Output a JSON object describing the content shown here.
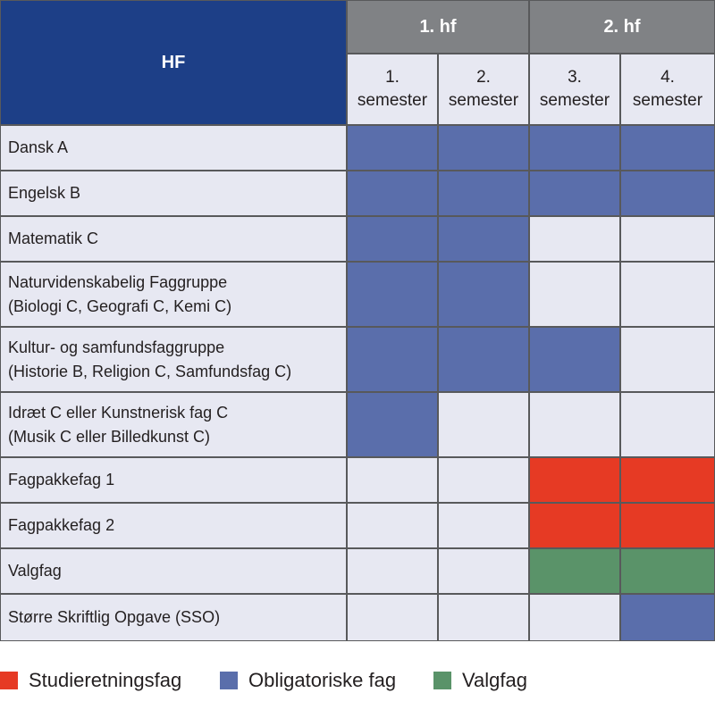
{
  "table": {
    "title": "HF",
    "years": [
      {
        "label": "1. hf"
      },
      {
        "label": "2. hf"
      }
    ],
    "semesters": [
      {
        "line1": "1.",
        "line2": "semester"
      },
      {
        "line1": "2.",
        "line2": "semester"
      },
      {
        "line1": "3.",
        "line2": "semester"
      },
      {
        "line1": "4.",
        "line2": "semester"
      }
    ],
    "rows": [
      {
        "lines": [
          "Dansk A"
        ],
        "cells": [
          "obligatorisk",
          "obligatorisk",
          "obligatorisk",
          "obligatorisk"
        ]
      },
      {
        "lines": [
          "Engelsk B"
        ],
        "cells": [
          "obligatorisk",
          "obligatorisk",
          "obligatorisk",
          "obligatorisk"
        ]
      },
      {
        "lines": [
          "Matematik C"
        ],
        "cells": [
          "obligatorisk",
          "obligatorisk",
          "",
          ""
        ]
      },
      {
        "lines": [
          "Naturvidenskabelig Faggruppe",
          "(Biologi C, Geografi C, Kemi C)"
        ],
        "cells": [
          "obligatorisk",
          "obligatorisk",
          "",
          ""
        ]
      },
      {
        "lines": [
          "Kultur- og samfundsfaggruppe",
          "(Historie B, Religion C, Samfundsfag C)"
        ],
        "cells": [
          "obligatorisk",
          "obligatorisk",
          "obligatorisk",
          ""
        ]
      },
      {
        "lines": [
          "Idræt C eller Kunstnerisk fag C",
          "(Musik C eller Billedkunst C)"
        ],
        "cells": [
          "obligatorisk",
          "",
          "",
          ""
        ]
      },
      {
        "lines": [
          "Fagpakkefag 1"
        ],
        "cells": [
          "",
          "",
          "studieretning",
          "studieretning"
        ]
      },
      {
        "lines": [
          "Fagpakkefag 2"
        ],
        "cells": [
          "",
          "",
          "studieretning",
          "studieretning"
        ]
      },
      {
        "lines": [
          "Valgfag"
        ],
        "cells": [
          "",
          "",
          "valgfag",
          "valgfag"
        ]
      },
      {
        "lines": [
          "Større Skriftlig Opgave (SSO)"
        ],
        "cells": [
          "",
          "",
          "",
          "obligatorisk"
        ]
      }
    ]
  },
  "legend": [
    {
      "key": "studieretning",
      "label": "Studieretningsfag",
      "color": "#e63a24"
    },
    {
      "key": "obligatorisk",
      "label": "Obligatoriske fag",
      "color": "#5a6eab"
    },
    {
      "key": "valgfag",
      "label": "Valgfag",
      "color": "#5a9369"
    }
  ],
  "colors": {
    "empty": "#e7e8f2",
    "header_blue": "#1d3f87",
    "header_gray": "#808285"
  }
}
